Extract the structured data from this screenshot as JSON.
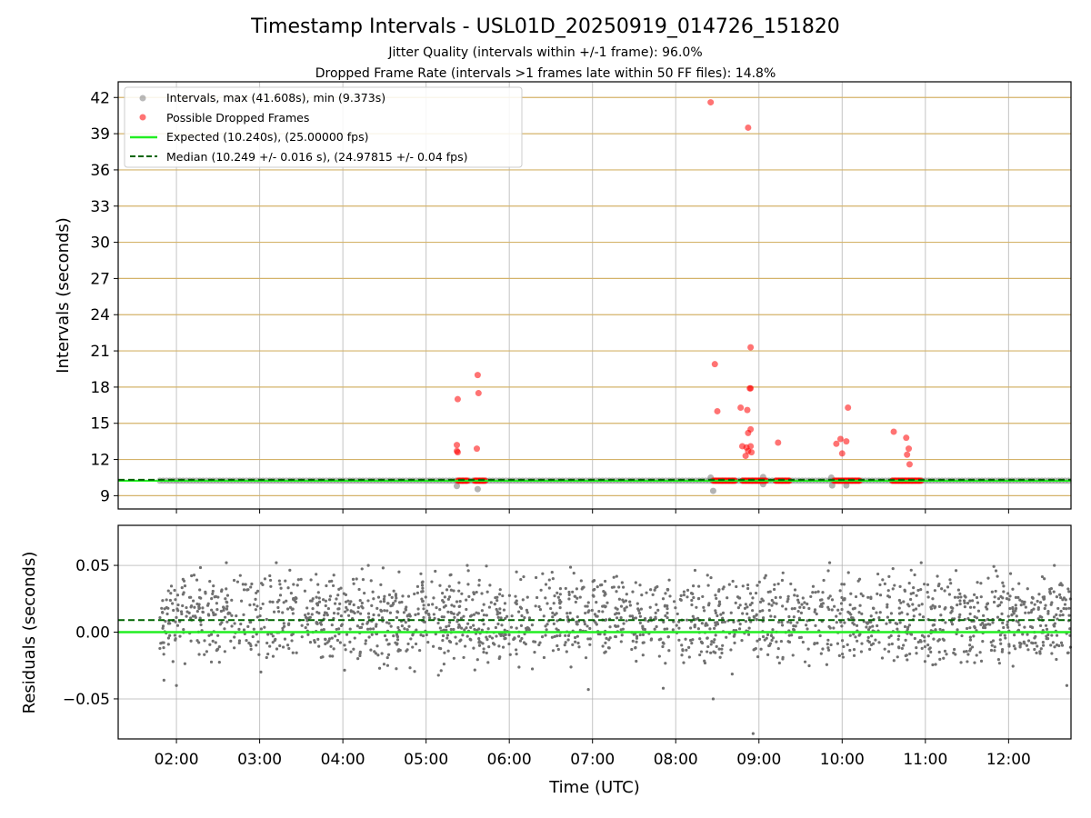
{
  "figure": {
    "title": "Timestamp Intervals - USL01D_20250919_014726_151820",
    "subtitle_1": "Jitter Quality (intervals within +/-1 frame): 96.0%",
    "subtitle_2": "Dropped Frame Rate (intervals >1 frames late within 50 FF files): 14.8%"
  },
  "colors": {
    "grid_h_top": "#d4b36a",
    "grid": "#b0b0b0",
    "intervals": "#808080",
    "dropped": "#ff0000",
    "expected": "#22ee22",
    "median": "#006400",
    "residual_points": "#707070"
  },
  "chart_data": [
    {
      "type": "scatter",
      "name": "intervals",
      "ylabel": "Intervals (seconds)",
      "xlabel": "",
      "xlim_hours": [
        1.3,
        12.75
      ],
      "ylim": [
        7.9,
        43.3
      ],
      "yticks": [
        9,
        12,
        15,
        18,
        21,
        24,
        27,
        30,
        33,
        36,
        39,
        42
      ],
      "ytick_labels": [
        "9",
        "12",
        "15",
        "18",
        "21",
        "24",
        "27",
        "30",
        "33",
        "36",
        "39",
        "42"
      ],
      "expected": 10.24,
      "median": 10.249,
      "legend": {
        "placement": "top-left",
        "entries": [
          "Intervals, max (41.608s), min (9.373s)",
          "Possible Dropped Frames",
          "Expected (10.240s), (25.00000 fps)",
          "Median (10.249 +/- 0.016 s), (24.97815 +/- 0.04 fps)"
        ]
      },
      "normal_range_hours": [
        1.8,
        12.75
      ],
      "normal_value": 10.24,
      "low_outliers": [
        {
          "t": 5.37,
          "v": 9.8
        },
        {
          "t": 5.62,
          "v": 9.55
        },
        {
          "t": 8.42,
          "v": 10.5
        },
        {
          "t": 8.45,
          "v": 9.4
        },
        {
          "t": 9.05,
          "v": 9.95
        },
        {
          "t": 9.88,
          "v": 9.85
        },
        {
          "t": 10.05,
          "v": 9.85
        },
        {
          "t": 9.87,
          "v": 10.5
        },
        {
          "t": 9.05,
          "v": 10.55
        }
      ],
      "dropped_clusters": [
        {
          "start": 5.38,
          "end": 5.5
        },
        {
          "start": 5.58,
          "end": 5.72
        },
        {
          "start": 8.45,
          "end": 8.72
        },
        {
          "start": 8.8,
          "end": 9.1
        },
        {
          "start": 9.2,
          "end": 9.38
        },
        {
          "start": 9.9,
          "end": 10.22
        },
        {
          "start": 10.6,
          "end": 10.95
        }
      ],
      "dropped_outliers": [
        {
          "t": 5.38,
          "v": 17.0
        },
        {
          "t": 5.37,
          "v": 13.2
        },
        {
          "t": 5.37,
          "v": 12.7
        },
        {
          "t": 5.38,
          "v": 12.6
        },
        {
          "t": 5.62,
          "v": 19.0
        },
        {
          "t": 5.63,
          "v": 17.5
        },
        {
          "t": 5.61,
          "v": 12.9
        },
        {
          "t": 8.42,
          "v": 41.6
        },
        {
          "t": 8.87,
          "v": 39.5
        },
        {
          "t": 8.47,
          "v": 19.9
        },
        {
          "t": 8.5,
          "v": 16.0
        },
        {
          "t": 8.78,
          "v": 16.3
        },
        {
          "t": 8.86,
          "v": 16.1
        },
        {
          "t": 8.9,
          "v": 21.3
        },
        {
          "t": 8.89,
          "v": 17.9
        },
        {
          "t": 8.9,
          "v": 17.9
        },
        {
          "t": 8.9,
          "v": 14.5
        },
        {
          "t": 8.87,
          "v": 14.2
        },
        {
          "t": 8.8,
          "v": 13.1
        },
        {
          "t": 8.85,
          "v": 13.0
        },
        {
          "t": 8.9,
          "v": 13.1
        },
        {
          "t": 8.84,
          "v": 12.3
        },
        {
          "t": 8.87,
          "v": 12.7
        },
        {
          "t": 8.91,
          "v": 12.6
        },
        {
          "t": 9.23,
          "v": 13.4
        },
        {
          "t": 9.93,
          "v": 13.3
        },
        {
          "t": 9.98,
          "v": 13.7
        },
        {
          "t": 10.05,
          "v": 13.5
        },
        {
          "t": 10.0,
          "v": 12.5
        },
        {
          "t": 10.07,
          "v": 16.3
        },
        {
          "t": 10.62,
          "v": 14.3
        },
        {
          "t": 10.77,
          "v": 13.8
        },
        {
          "t": 10.8,
          "v": 12.9
        },
        {
          "t": 10.78,
          "v": 12.4
        },
        {
          "t": 10.81,
          "v": 11.6
        }
      ]
    },
    {
      "type": "scatter",
      "name": "residuals",
      "ylabel": "Residuals (seconds)",
      "xlabel": "Time (UTC)",
      "xlim_hours": [
        1.3,
        12.75
      ],
      "ylim": [
        -0.08,
        0.08
      ],
      "yticks": [
        -0.05,
        0.0,
        0.05
      ],
      "ytick_labels": [
        "−0.05",
        "0.00",
        "0.05"
      ],
      "xticks": [
        2,
        3,
        4,
        5,
        6,
        7,
        8,
        9,
        10,
        11,
        12
      ],
      "xtick_labels": [
        "02:00",
        "03:00",
        "04:00",
        "05:00",
        "06:00",
        "07:00",
        "08:00",
        "09:00",
        "10:00",
        "11:00",
        "12:00"
      ],
      "expected": 0.0,
      "median": 0.009,
      "residual_range_hours": [
        1.8,
        12.75
      ],
      "residual_count": 2000,
      "residual_bands": [
        -0.01,
        0.0,
        0.01,
        0.02,
        0.03
      ],
      "residual_spread": 0.02,
      "residual_extremes": [
        {
          "t": 8.93,
          "v": -0.076
        },
        {
          "t": 8.45,
          "v": -0.05
        },
        {
          "t": 2.6,
          "v": 0.052
        },
        {
          "t": 3.2,
          "v": 0.052
        },
        {
          "t": 9.85,
          "v": 0.052
        },
        {
          "t": 10.95,
          "v": 0.052
        },
        {
          "t": 12.55,
          "v": 0.05
        },
        {
          "t": 1.85,
          "v": -0.036
        },
        {
          "t": 2.0,
          "v": -0.04
        },
        {
          "t": 6.95,
          "v": -0.043
        },
        {
          "t": 7.85,
          "v": -0.042
        },
        {
          "t": 12.7,
          "v": -0.04
        }
      ]
    }
  ]
}
